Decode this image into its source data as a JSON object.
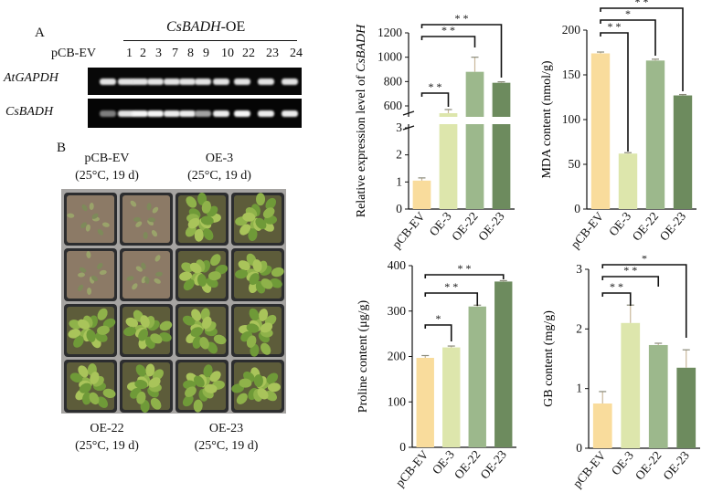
{
  "gel": {
    "panel_label": "A",
    "title_gene": "CsBADH",
    "title_suffix": "-OE",
    "control_lane": "pCB-EV",
    "lanes": [
      "1",
      "2",
      "3",
      "7",
      "8",
      "9",
      "10",
      "22",
      "23",
      "24"
    ],
    "row_labels": [
      "AtGAPDH",
      "CsBADH"
    ],
    "band_intensity_gapdh": [
      0.85,
      0.85,
      0.85,
      0.85,
      0.85,
      0.85,
      0.85,
      0.85,
      0.85,
      0.85,
      0.85
    ],
    "band_intensity_badh": [
      0.3,
      0.85,
      0.95,
      0.95,
      0.9,
      0.9,
      0.5,
      0.9,
      0.95,
      0.9,
      0.9
    ]
  },
  "photo": {
    "panel_label": "B",
    "labels": [
      {
        "name": "pCB-EV",
        "cond": "(25°C, 19 d)"
      },
      {
        "name": "OE-3",
        "cond": "(25°C, 19 d)"
      },
      {
        "name": "OE-22",
        "cond": "(25°C, 19 d)"
      },
      {
        "name": "OE-23",
        "cond": "(25°C, 19 d)"
      }
    ]
  },
  "chart_data": [
    {
      "type": "bar",
      "id": "expr",
      "categories": [
        "pCB-EV",
        "OE-3",
        "OE-22",
        "OE-23"
      ],
      "values": [
        1.05,
        540,
        880,
        790
      ],
      "errors": [
        0.1,
        30,
        120,
        8
      ],
      "colors": [
        "#f9dc9c",
        "#dde6ac",
        "#9cb88c",
        "#6d8b5e"
      ],
      "ylabel_prefix": "Relative expression level of ",
      "ylabel_italic": "CsBADH",
      "lower_ticks": [
        "0",
        "1",
        "2",
        "3"
      ],
      "upper_ticks": [
        "600",
        "800",
        "1000",
        "1200"
      ],
      "significance": [
        {
          "to": "OE-3",
          "mark": "* *"
        },
        {
          "to": "OE-22",
          "mark": "* *"
        },
        {
          "to": "OE-23",
          "mark": "* *"
        }
      ]
    },
    {
      "type": "bar",
      "id": "mda",
      "categories": [
        "pCB-EV",
        "OE-3",
        "OE-22",
        "OE-23"
      ],
      "values": [
        174,
        62,
        166,
        127
      ],
      "errors": [
        1.5,
        1,
        1.5,
        1
      ],
      "colors": [
        "#f9dc9c",
        "#dde6ac",
        "#9cb88c",
        "#6d8b5e"
      ],
      "ylabel": "MDA content (nmol/g)",
      "ylim": [
        0,
        200
      ],
      "ticks": [
        "0",
        "50",
        "100",
        "150",
        "200"
      ],
      "significance": [
        {
          "to": "OE-3",
          "mark": "* *"
        },
        {
          "to": "OE-22",
          "mark": "*"
        },
        {
          "to": "OE-23",
          "mark": "* *"
        }
      ]
    },
    {
      "type": "bar",
      "id": "proline",
      "categories": [
        "pCB-EV",
        "OE-3",
        "OE-22",
        "OE-23"
      ],
      "values": [
        197,
        220,
        310,
        365
      ],
      "errors": [
        5,
        3,
        3,
        2
      ],
      "colors": [
        "#f9dc9c",
        "#dde6ac",
        "#9cb88c",
        "#6d8b5e"
      ],
      "ylabel": "Proline content (μg/g)",
      "ylim": [
        0,
        400
      ],
      "ticks": [
        "0",
        "100",
        "200",
        "300",
        "400"
      ],
      "significance": [
        {
          "to": "OE-3",
          "mark": "*"
        },
        {
          "to": "OE-22",
          "mark": "* *"
        },
        {
          "to": "OE-23",
          "mark": "* *"
        }
      ]
    },
    {
      "type": "bar",
      "id": "gb",
      "categories": [
        "pCB-EV",
        "OE-3",
        "OE-22",
        "OE-23"
      ],
      "values": [
        0.75,
        2.1,
        1.73,
        1.35
      ],
      "errors": [
        0.2,
        0.3,
        0.03,
        0.3
      ],
      "colors": [
        "#f9dc9c",
        "#dde6ac",
        "#9cb88c",
        "#6d8b5e"
      ],
      "ylabel": "GB content (mg/g)",
      "ylim": [
        0,
        3
      ],
      "ticks": [
        "0",
        "1",
        "2",
        "3"
      ],
      "significance": [
        {
          "to": "OE-3",
          "mark": "* *"
        },
        {
          "to": "OE-22",
          "mark": "* *"
        },
        {
          "to": "OE-23",
          "mark": "*"
        }
      ]
    }
  ]
}
